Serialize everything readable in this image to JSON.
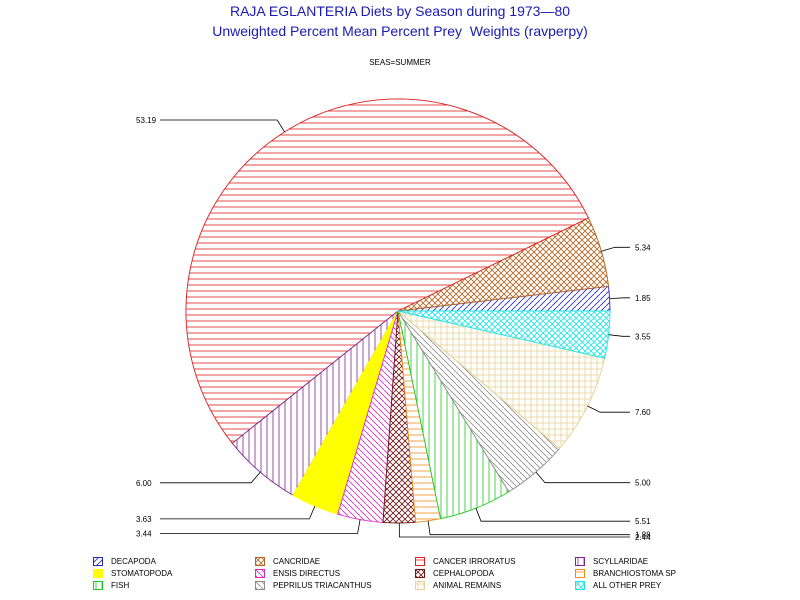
{
  "header": {
    "title": "RAJA EGLANTERIA Diets by Season during 1973—80",
    "subtitle": "Unweighted Percent Mean Percent Prey  Weights (ravperpy)",
    "season_label": "SEAS=SUMMER"
  },
  "chart_data": {
    "type": "pie",
    "title": "RAJA EGLANTERIA Diets by Season during 1973—80",
    "subtitle": "Unweighted Percent Mean Percent Prey  Weights (ravperpy)",
    "panel": "SEAS=SUMMER",
    "slices": [
      {
        "name": "DECAPODA",
        "value": 1.85,
        "label": "1.85",
        "color": "#2828c8",
        "pattern": "diag"
      },
      {
        "name": "CANCRIDAE",
        "value": 5.34,
        "label": "5.34",
        "color": "#b4641e",
        "pattern": "cross"
      },
      {
        "name": "CANCER IRRORATUS",
        "value": 53.19,
        "label": "53.19",
        "color": "#dc1e1e",
        "pattern": "hlines"
      },
      {
        "name": "SCYLLARIDAE",
        "value": 6.0,
        "label": "6.00",
        "color": "#7a2a8c",
        "pattern": "vlines"
      },
      {
        "name": "STOMATOPODA",
        "value": 3.63,
        "label": "3.63",
        "color": "#ffff00",
        "pattern": "solid"
      },
      {
        "name": "ENSIS DIRECTUS",
        "value": 3.44,
        "label": "3.44",
        "color": "#dc28c8",
        "pattern": "diag2"
      },
      {
        "name": "CEPHALOPODA",
        "value": 2.44,
        "label": "2.44",
        "color": "#6e1414",
        "pattern": "cross"
      },
      {
        "name": "BRANCHIOSTOMA SP",
        "value": 1.88,
        "label": "1.88",
        "color": "#f08c1e",
        "pattern": "hlines"
      },
      {
        "name": "FISH",
        "value": 5.51,
        "label": "5.51",
        "color": "#1ec81e",
        "pattern": "vlines"
      },
      {
        "name": "PEPRILUS TRIACANTHUS",
        "value": 5.0,
        "label": "5.00",
        "color": "#8c8c8c",
        "pattern": "diag2"
      },
      {
        "name": "ANIMAL REMAINS",
        "value": 7.6,
        "label": "7.60",
        "color": "#e6d296",
        "pattern": "grid"
      },
      {
        "name": "ALL OTHER PREY",
        "value": 3.55,
        "label": "3.55",
        "color": "#1ee6e6",
        "pattern": "cross"
      }
    ],
    "start_angle_deg": 0,
    "direction": "counterclockwise",
    "legend_position": "bottom"
  },
  "legend": {
    "rows": [
      [
        "DECAPODA",
        "CANCRIDAE",
        "CANCER IRRORATUS",
        "SCYLLARIDAE"
      ],
      [
        "STOMATOPODA",
        "ENSIS DIRECTUS",
        "CEPHALOPODA",
        "BRANCHIOSTOMA SP"
      ],
      [
        "FISH",
        "PEPRILUS TRIACANTHUS",
        "ANIMAL REMAINS",
        "ALL OTHER PREY"
      ]
    ]
  }
}
